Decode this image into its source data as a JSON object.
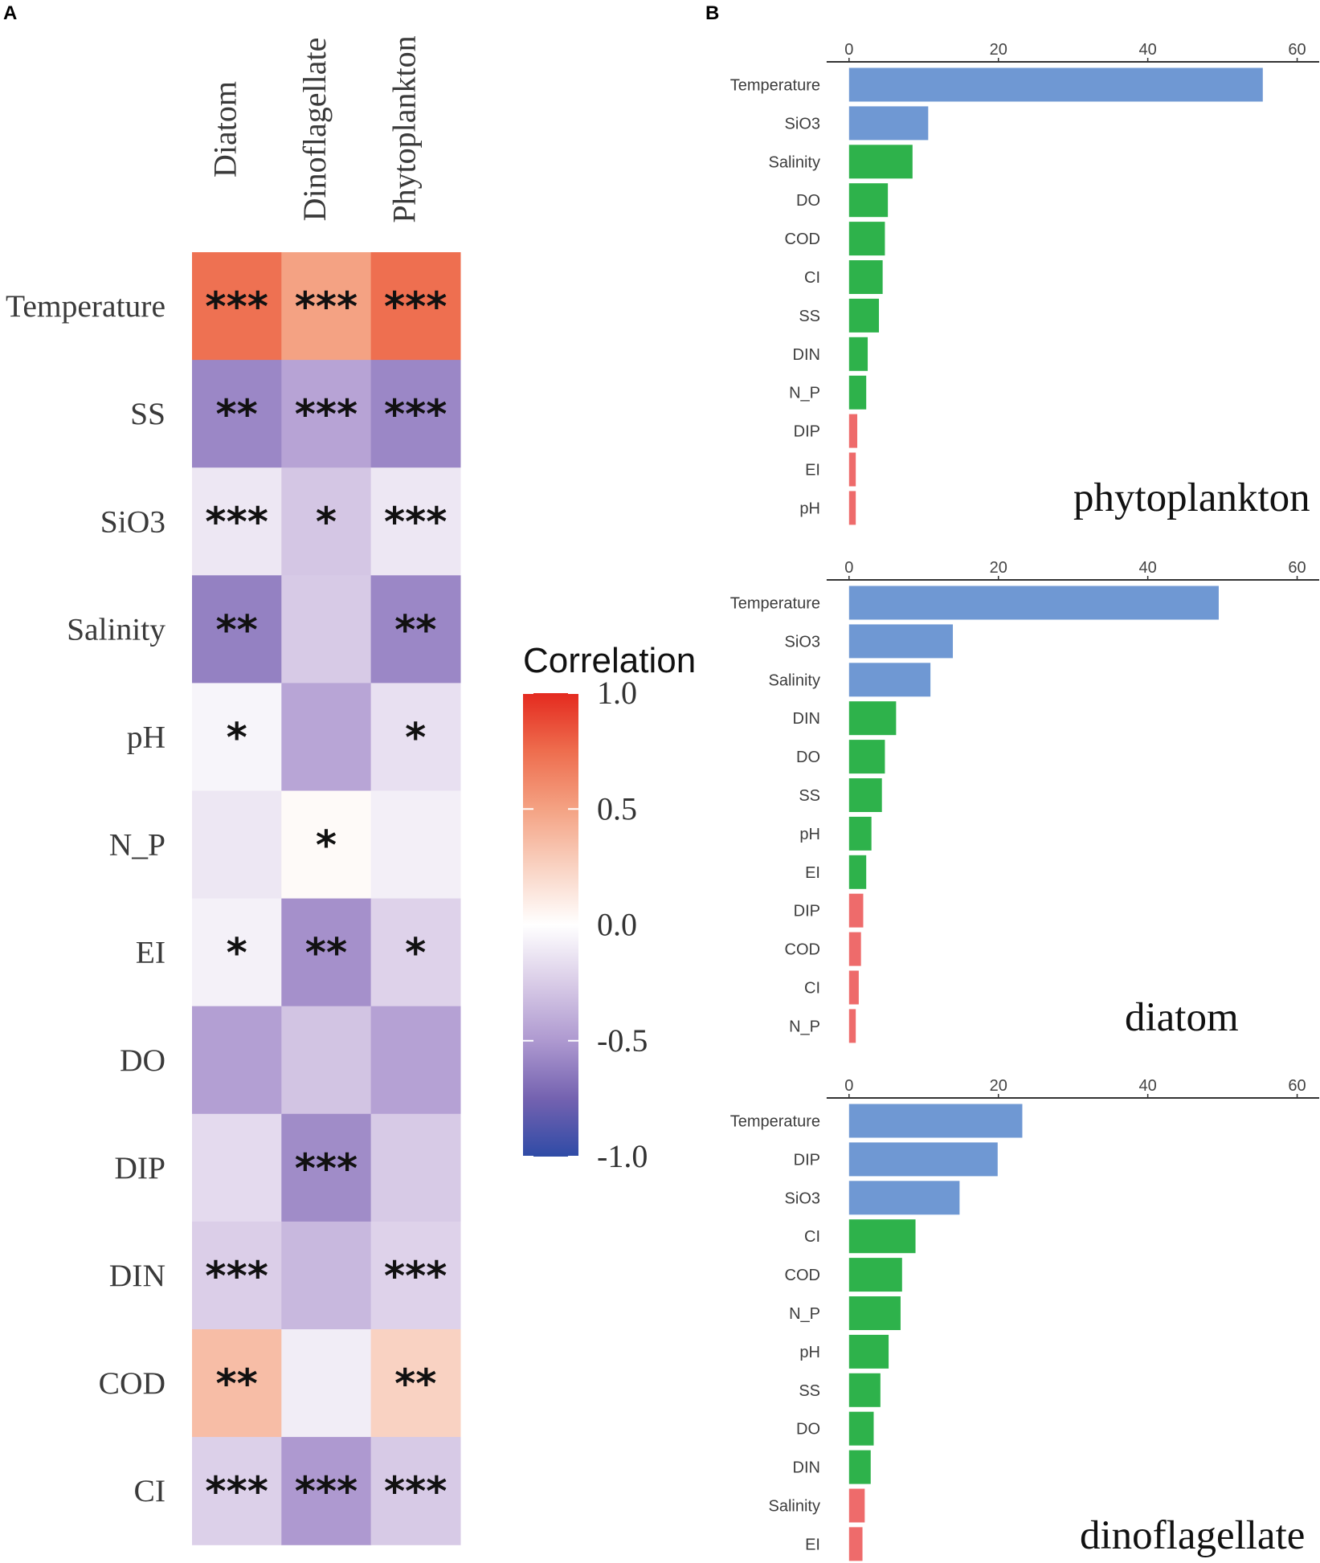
{
  "panel_labels": {
    "a": "A",
    "b": "B"
  },
  "chart_data": [
    {
      "type": "heatmap",
      "columns": [
        "Diatom",
        "Dinoflagellate",
        "Phytoplankton"
      ],
      "rows": [
        "Temperature",
        "SS",
        "SiO3",
        "Salinity",
        "pH",
        "N_P",
        "EI",
        "DO",
        "DIP",
        "DIN",
        "COD",
        "CI"
      ],
      "values": [
        [
          0.73,
          0.5,
          0.74
        ],
        [
          -0.58,
          -0.45,
          -0.58
        ],
        [
          -0.12,
          -0.28,
          -0.12
        ],
        [
          -0.61,
          -0.26,
          -0.58
        ],
        [
          -0.05,
          -0.44,
          -0.15
        ],
        [
          -0.12,
          0.03,
          -0.08
        ],
        [
          -0.07,
          -0.54,
          -0.22
        ],
        [
          -0.47,
          -0.29,
          -0.46
        ],
        [
          -0.18,
          -0.56,
          -0.26
        ],
        [
          -0.24,
          -0.35,
          -0.22
        ],
        [
          0.36,
          -0.09,
          0.25
        ],
        [
          -0.23,
          -0.5,
          -0.26
        ]
      ],
      "significance": [
        [
          "***",
          "***",
          "***"
        ],
        [
          "**",
          "***",
          "***"
        ],
        [
          "***",
          "*",
          "***"
        ],
        [
          "**",
          "",
          "**"
        ],
        [
          "*",
          "",
          "*"
        ],
        [
          "",
          "*",
          ""
        ],
        [
          "*",
          "**",
          "*"
        ],
        [
          "",
          "",
          ""
        ],
        [
          "",
          "***",
          ""
        ],
        [
          "***",
          "",
          "***"
        ],
        [
          "**",
          "",
          "**"
        ],
        [
          "***",
          "***",
          "***"
        ]
      ],
      "legend": {
        "title": "Correlation",
        "range": [
          -1.0,
          1.0
        ],
        "ticks": [
          1.0,
          0.5,
          0.0,
          -0.5,
          -1.0
        ],
        "tick_labels": [
          "1.0",
          "0.5",
          "0.0",
          "-0.5",
          "-1.0"
        ],
        "stops": [
          {
            "value": 1.0,
            "color": "#E42A1F"
          },
          {
            "value": 0.75,
            "color": "#EE6D4E"
          },
          {
            "value": 0.5,
            "color": "#F4A283"
          },
          {
            "value": 0.25,
            "color": "#F9D2C2"
          },
          {
            "value": 0.0,
            "color": "#FFFFFF"
          },
          {
            "value": -0.25,
            "color": "#D9CCE7"
          },
          {
            "value": -0.5,
            "color": "#AE99D0"
          },
          {
            "value": -0.75,
            "color": "#7462B0"
          },
          {
            "value": -1.0,
            "color": "#2F4BA6"
          }
        ]
      }
    },
    {
      "type": "bar",
      "title": "phytoplankton",
      "categories": [
        "Temperature",
        "SiO3",
        "Salinity",
        "DO",
        "COD",
        "CI",
        "SS",
        "DIN",
        "N_P",
        "DIP",
        "EI",
        "pH"
      ],
      "values": [
        55.4,
        10.6,
        8.5,
        5.2,
        4.8,
        4.5,
        4.0,
        2.5,
        2.3,
        1.1,
        0.9,
        0.9
      ],
      "color_group": [
        0,
        0,
        1,
        1,
        1,
        1,
        1,
        1,
        1,
        2,
        2,
        2
      ],
      "group_colors": [
        "#6F98D3",
        "#2EB24B",
        "#EE6B6B"
      ],
      "xlim": [
        0,
        60
      ],
      "xticks": [
        0,
        20,
        40,
        60
      ],
      "xtick_labels": [
        "0",
        "20",
        "40",
        "60"
      ]
    },
    {
      "type": "bar",
      "title": "diatom",
      "categories": [
        "Temperature",
        "SiO3",
        "Salinity",
        "DIN",
        "DO",
        "SS",
        "pH",
        "EI",
        "DIP",
        "COD",
        "CI",
        "N_P"
      ],
      "values": [
        49.5,
        13.9,
        10.9,
        6.3,
        4.8,
        4.4,
        3.0,
        2.3,
        1.9,
        1.6,
        1.3,
        0.9
      ],
      "color_group": [
        0,
        0,
        0,
        1,
        1,
        1,
        1,
        1,
        2,
        2,
        2,
        2
      ],
      "group_colors": [
        "#6F98D3",
        "#2EB24B",
        "#EE6B6B"
      ],
      "xlim": [
        0,
        60
      ],
      "xticks": [
        0,
        20,
        40,
        60
      ],
      "xtick_labels": [
        "0",
        "20",
        "40",
        "60"
      ]
    },
    {
      "type": "bar",
      "title": "dinoflagellate",
      "categories": [
        "Temperature",
        "DIP",
        "SiO3",
        "CI",
        "COD",
        "N_P",
        "pH",
        "SS",
        "DO",
        "DIN",
        "Salinity",
        "EI"
      ],
      "values": [
        23.2,
        19.9,
        14.8,
        8.9,
        7.1,
        6.9,
        5.3,
        4.2,
        3.3,
        2.9,
        2.1,
        1.8
      ],
      "color_group": [
        0,
        0,
        0,
        1,
        1,
        1,
        1,
        1,
        1,
        1,
        2,
        2
      ],
      "group_colors": [
        "#6F98D3",
        "#2EB24B",
        "#EE6B6B"
      ],
      "xlim": [
        0,
        60
      ],
      "xticks": [
        0,
        20,
        40,
        60
      ],
      "xtick_labels": [
        "0",
        "20",
        "40",
        "60"
      ]
    }
  ]
}
